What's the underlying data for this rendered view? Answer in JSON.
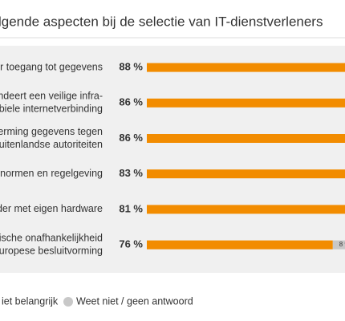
{
  "chart_data": {
    "type": "hbar",
    "title": "lgende aspecten bij de selectie van IT-dienstverleners",
    "categories": [
      [
        "er toegang tot gegevens"
      ],
      [
        "andeert een veilige infra-",
        "biele internetverbinding"
      ],
      [
        "herming gegevens tegen",
        "uitenlandse autoriteiten"
      ],
      [
        "n normen en regelgeving"
      ],
      [
        "der met eigen hardware"
      ],
      [
        "gische onafhankelijkheid",
        "Europese besluitvorming"
      ]
    ],
    "series": [
      {
        "color": "#f28c00",
        "values": [
          88,
          86,
          86,
          83,
          81,
          76
        ],
        "value_labels": [
          "88 %",
          "86 %",
          "86 %",
          "83 %",
          "81 %",
          "76 %"
        ]
      },
      {
        "name": "iet belangrijk",
        "color": "#1f3a5f",
        "values": [
          null,
          null,
          null,
          null,
          null,
          null
        ]
      },
      {
        "name": "Weet niet / geen antwoord",
        "color": "#c8c8c8",
        "values": [
          null,
          null,
          null,
          null,
          null,
          8
        ],
        "value_labels": [
          null,
          null,
          null,
          null,
          null,
          "8 %"
        ]
      }
    ],
    "xlim": [
      0,
      100
    ]
  }
}
